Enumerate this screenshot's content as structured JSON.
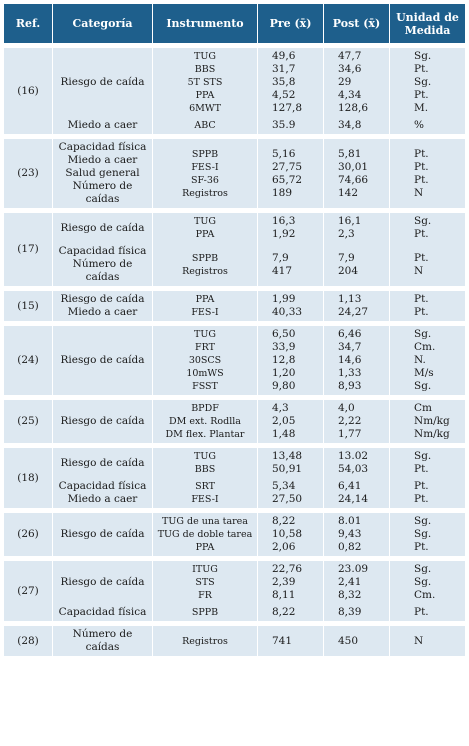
{
  "headers": [
    "Ref.",
    "Categoría",
    "Instrumento",
    "Pre (x̄)",
    "Post (x̄)",
    "Unidad de Medida"
  ],
  "groups": [
    {
      "ref": "(16)",
      "rows": [
        {
          "cat": [
            "Riesgo de caída"
          ],
          "ins": [
            "TUG",
            "BBS",
            "5T STS",
            "PPA",
            "6MWT"
          ],
          "pre": [
            "49,6",
            "31,7",
            "35,8",
            "4,52",
            "127,8"
          ],
          "post": [
            "47,7",
            "34,6",
            "29",
            "4,34",
            "128,6"
          ],
          "uni": [
            "Sg.",
            "Pt.",
            "Sg.",
            "Pt.",
            "M."
          ]
        },
        {
          "cat": [
            "Miedo a caer"
          ],
          "ins": [
            "ABC"
          ],
          "pre": [
            "35.9"
          ],
          "post": [
            "34,8"
          ],
          "uni": [
            "%"
          ]
        }
      ]
    },
    {
      "ref": "(23)",
      "rows": [
        {
          "cat": [
            "Capacidad física",
            "Miedo a caer",
            "Salud general",
            "Número de",
            "caídas"
          ],
          "ins": [
            "SPPB",
            "FES-I",
            "SF-36",
            "Registros"
          ],
          "pre": [
            "5,16",
            "27,75",
            "65,72",
            "189"
          ],
          "post": [
            "5,81",
            "30,01",
            "74,66",
            "142"
          ],
          "uni": [
            "Pt.",
            "Pt.",
            "Pt.",
            "N"
          ]
        }
      ]
    },
    {
      "ref": "(17)",
      "rows": [
        {
          "cat": [
            "Riesgo de caída"
          ],
          "ins": [
            "TUG",
            "PPA"
          ],
          "pre": [
            "16,3",
            "1,92"
          ],
          "post": [
            "16,1",
            "2,3"
          ],
          "uni": [
            "Sg.",
            "Pt."
          ]
        },
        {
          "cat": [
            "Capacidad física",
            "Número de",
            "caídas"
          ],
          "ins": [
            "SPPB",
            "Registros"
          ],
          "pre": [
            "7,9",
            "417"
          ],
          "post": [
            "7,9",
            "204"
          ],
          "uni": [
            "Pt.",
            "N"
          ]
        }
      ]
    },
    {
      "ref": "(15)",
      "rows": [
        {
          "cat": [
            "Riesgo de caída",
            "Miedo a caer"
          ],
          "ins": [
            "PPA",
            "FES-I"
          ],
          "pre": [
            "1,99",
            "40,33"
          ],
          "post": [
            "1,13",
            "24,27"
          ],
          "uni": [
            "Pt.",
            "Pt."
          ]
        }
      ]
    },
    {
      "ref": "(24)",
      "rows": [
        {
          "cat": [
            "Riesgo de caída"
          ],
          "ins": [
            "TUG",
            "FRT",
            "30SCS",
            "10mWS",
            "FSST"
          ],
          "pre": [
            "6,50",
            "33,9",
            "12,8",
            "1,20",
            "9,80"
          ],
          "post": [
            "6,46",
            "34,7",
            "14,6",
            "1,33",
            "8,93"
          ],
          "uni": [
            "Sg.",
            "Cm.",
            "N.",
            "M/s",
            "Sg."
          ]
        }
      ]
    },
    {
      "ref": "(25)",
      "rows": [
        {
          "cat": [
            "Riesgo de caída"
          ],
          "ins": [
            "BPDF",
            "DM ext. Rodlla",
            "DM flex. Plantar"
          ],
          "pre": [
            "4,3",
            "2,05",
            "1,48"
          ],
          "post": [
            "4,0",
            "2,22",
            "1,77"
          ],
          "uni": [
            "Cm",
            "Nm/kg",
            "Nm/kg"
          ]
        }
      ]
    },
    {
      "ref": "(18)",
      "rows": [
        {
          "cat": [
            "Riesgo de caída"
          ],
          "ins": [
            "TUG",
            "BBS"
          ],
          "pre": [
            "13,48",
            "50,91"
          ],
          "post": [
            "13.02",
            "54,03"
          ],
          "uni": [
            "Sg.",
            "Pt."
          ]
        },
        {
          "cat": [
            "Capacidad física",
            "Miedo a caer"
          ],
          "ins": [
            "SRT",
            "FES-I"
          ],
          "pre": [
            "5,34",
            "27,50"
          ],
          "post": [
            "6,41",
            "24,14"
          ],
          "uni": [
            "Pt.",
            "Pt."
          ]
        }
      ]
    },
    {
      "ref": "(26)",
      "rows": [
        {
          "cat": [
            "Riesgo de caída"
          ],
          "ins": [
            "TUG de una tarea",
            "TUG de doble tarea",
            "PPA"
          ],
          "pre": [
            "8,22",
            "10,58",
            "2,06"
          ],
          "post": [
            "8.01",
            "9,43",
            "0,82"
          ],
          "uni": [
            "Sg.",
            "Sg.",
            "Pt."
          ]
        }
      ]
    },
    {
      "ref": "(27)",
      "rows": [
        {
          "cat": [
            "Riesgo de caída"
          ],
          "ins": [
            "ITUG",
            "STS",
            "FR"
          ],
          "pre": [
            "22,76",
            "2,39",
            "8,11"
          ],
          "post": [
            "23.09",
            "2,41",
            "8,32"
          ],
          "uni": [
            "Sg.",
            "Sg.",
            "Cm."
          ]
        },
        {
          "cat": [
            "Capacidad física"
          ],
          "ins": [
            "SPPB"
          ],
          "pre": [
            "8,22"
          ],
          "post": [
            "8,39"
          ],
          "uni": [
            "Pt."
          ]
        }
      ]
    },
    {
      "ref": "(28)",
      "rows": [
        {
          "cat": [
            "Número de",
            "caídas"
          ],
          "ins": [
            "Registros"
          ],
          "pre": [
            "741"
          ],
          "post": [
            "450"
          ],
          "uni": [
            "N"
          ]
        }
      ]
    }
  ]
}
